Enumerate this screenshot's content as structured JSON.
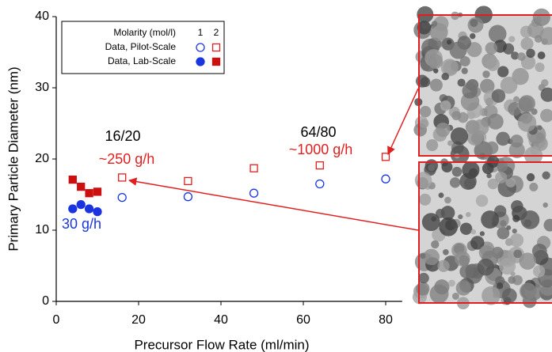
{
  "chart_data": {
    "type": "scatter",
    "x_label": "Precursor Flow Rate (ml/min)",
    "y_label": "Primary Particle Diameter (nm)",
    "xlim": [
      0,
      84
    ],
    "ylim": [
      0,
      40
    ],
    "xticks": [
      0,
      20,
      40,
      60,
      80
    ],
    "yticks": [
      0,
      10,
      20,
      30,
      40
    ],
    "legend": {
      "title": "Molarity (mol/l)",
      "columns": [
        "1",
        "2"
      ],
      "rows": [
        "Data, Pilot-Scale",
        "Data, Lab-Scale"
      ],
      "position": "upper left"
    },
    "series": [
      {
        "marker": "circle",
        "filled": false,
        "color": "#1a35e0",
        "x": [
          16,
          32,
          48,
          64,
          80
        ],
        "values": [
          14.6,
          14.7,
          15.2,
          16.5,
          17.2
        ]
      },
      {
        "marker": "square",
        "filled": false,
        "color": "#e02020",
        "x": [
          16,
          32,
          48,
          64,
          80
        ],
        "values": [
          17.4,
          16.9,
          18.7,
          19.1,
          20.3
        ]
      },
      {
        "marker": "circle",
        "filled": true,
        "color": "#1a35e0",
        "x": [
          4,
          6,
          8,
          10
        ],
        "values": [
          13.0,
          13.6,
          13.0,
          12.6
        ]
      },
      {
        "marker": "square",
        "filled": true,
        "color": "#cc1010",
        "x": [
          4,
          6,
          8,
          10
        ],
        "values": [
          17.1,
          16.1,
          15.2,
          15.4
        ]
      }
    ],
    "annotations": [
      {
        "text": "16/20",
        "color": "#000000"
      },
      {
        "text": "~250 g/h",
        "color": "#e02020"
      },
      {
        "text": "64/80",
        "color": "#000000"
      },
      {
        "text": "~1000 g/h",
        "color": "#e02020"
      },
      {
        "text": "30 g/h",
        "color": "#1a35e0"
      }
    ]
  }
}
